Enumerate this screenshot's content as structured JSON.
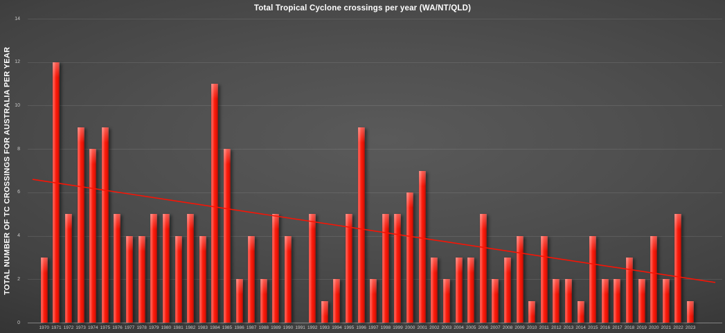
{
  "title": "Total Tropical Cyclone crossings per year (WA/NT/QLD)",
  "colors": {
    "bar_red": "#f61c0c",
    "trendline_red": "#f81405",
    "background_dark": "#3d3d3d",
    "text_white": "#ffffff",
    "tick_gray": "#c9c9c9"
  },
  "chart_data": {
    "type": "bar",
    "title": "Total Tropical Cyclone crossings per year (WA/NT/QLD)",
    "xlabel": "",
    "ylabel": "TOTAL NUMBER OF TC CROSSINGS FOR AUSTRALIA PER YEAR",
    "ylim": [
      0,
      14
    ],
    "ytick_step": 2,
    "ytick_labels": [
      "0",
      "2",
      "4",
      "6",
      "8",
      "10",
      "12",
      "14"
    ],
    "grid": true,
    "legend": false,
    "categories": [
      1970,
      1971,
      1972,
      1973,
      1974,
      1975,
      1976,
      1977,
      1978,
      1979,
      1980,
      1981,
      1982,
      1983,
      1984,
      1985,
      1986,
      1987,
      1988,
      1989,
      1990,
      1991,
      1992,
      1993,
      1994,
      1995,
      1996,
      1997,
      1998,
      1999,
      2000,
      2001,
      2002,
      2003,
      2004,
      2005,
      2006,
      2007,
      2008,
      2009,
      2010,
      2011,
      2012,
      2013,
      2014,
      2015,
      2016,
      2017,
      2018,
      2019,
      2020,
      2021,
      2022,
      2023
    ],
    "values": [
      3,
      12,
      5,
      9,
      8,
      9,
      5,
      4,
      4,
      5,
      5,
      4,
      5,
      4,
      11,
      8,
      2,
      4,
      2,
      5,
      4,
      0,
      5,
      1,
      2,
      5,
      9,
      2,
      5,
      5,
      6,
      7,
      3,
      2,
      3,
      3,
      5,
      2,
      3,
      4,
      1,
      4,
      2,
      2,
      1,
      4,
      2,
      2,
      3,
      2,
      4,
      2,
      5,
      1
    ],
    "trendline": {
      "style": "linear",
      "start_value": 6.6,
      "end_value": 1.85,
      "color": "#f81405"
    }
  }
}
